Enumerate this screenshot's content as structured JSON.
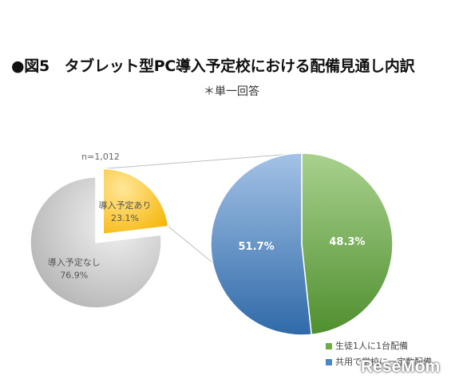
{
  "header": {
    "title": "●図5　タブレット型PC導入予定校における配備見通し内訳",
    "subtitle": "＊単一回答"
  },
  "chart_data": [
    {
      "type": "pie",
      "note": "n=1,012",
      "slices": [
        {
          "label": "導入予定あり",
          "value": 23.1,
          "display": "23.1%",
          "color": "#ffc000",
          "exploded": true
        },
        {
          "label": "導入予定なし",
          "value": 76.9,
          "display": "76.9%",
          "color": "#c9c9c9"
        }
      ]
    },
    {
      "type": "pie",
      "breakdown_of": "導入予定あり",
      "legend_position": "bottom-right",
      "slices": [
        {
          "label": "生徒1人に1台配備",
          "value": 48.3,
          "display": "48.3%",
          "color": "#70ad47"
        },
        {
          "label": "共用で学校に一定数配備",
          "value": 51.7,
          "display": "51.7%",
          "color": "#4a86c8"
        }
      ]
    }
  ],
  "watermark": "ReseMom"
}
